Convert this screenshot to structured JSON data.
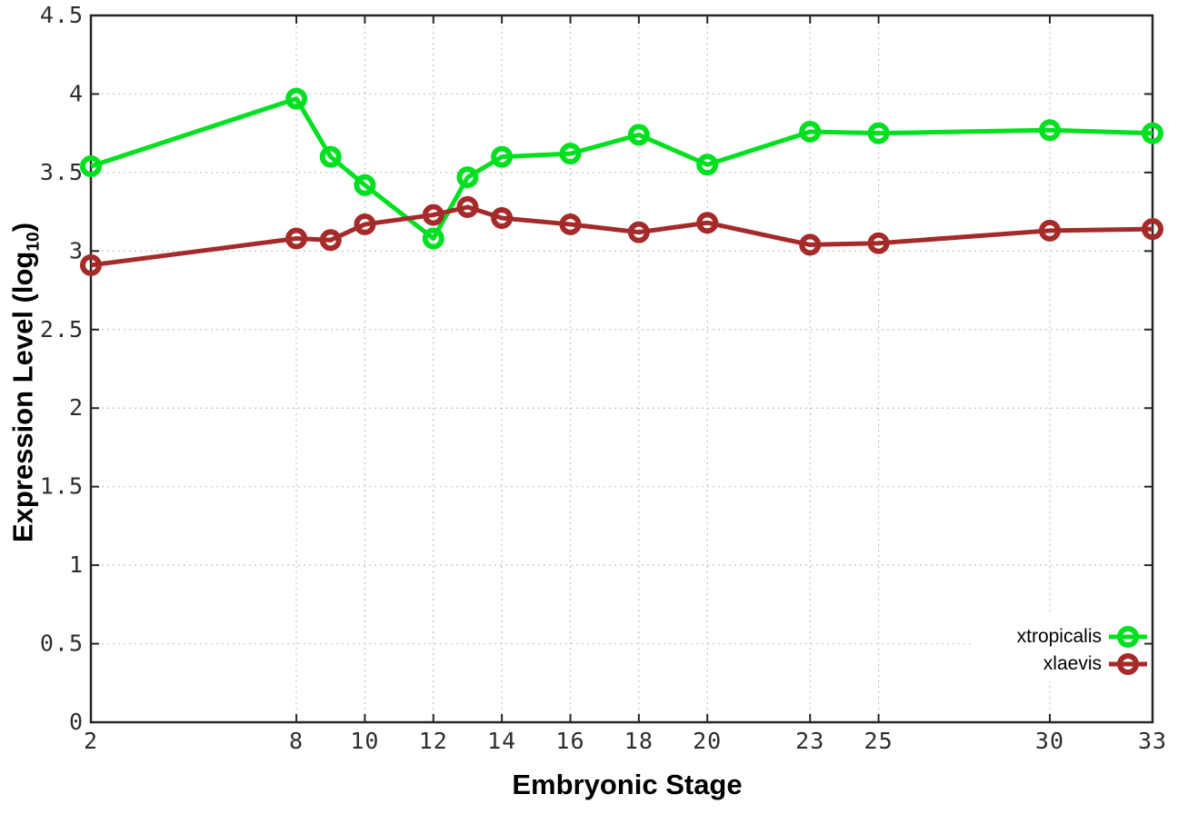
{
  "chart_data": {
    "type": "line",
    "title": "",
    "xlabel": "Embryonic Stage",
    "ylabel": "Expression Level (log10)",
    "ylabel_display": {
      "main": "Expression Level (log",
      "sub": "10",
      "end": ")"
    },
    "x": [
      2,
      8,
      9,
      10,
      12,
      13,
      14,
      16,
      18,
      20,
      23,
      25,
      30,
      33
    ],
    "series": [
      {
        "name": "xtropicalis",
        "color": "#00E020",
        "values": [
          3.54,
          3.97,
          3.6,
          3.42,
          3.08,
          3.47,
          3.6,
          3.62,
          3.74,
          3.55,
          3.76,
          3.75,
          3.77,
          3.75
        ]
      },
      {
        "name": "xlaevis",
        "color": "#A52A2A",
        "values": [
          2.91,
          3.08,
          3.07,
          3.17,
          3.23,
          3.28,
          3.21,
          3.17,
          3.12,
          3.18,
          3.04,
          3.05,
          3.13,
          3.14
        ]
      }
    ],
    "xlim": [
      2,
      33
    ],
    "ylim": [
      0,
      4.5
    ],
    "xticks": {
      "values": [
        2,
        8,
        10,
        12,
        14,
        16,
        18,
        20,
        23,
        25,
        30,
        33
      ],
      "labels": [
        "2",
        "8",
        "10",
        "12",
        "14",
        "16",
        "18",
        "20",
        "23",
        "25",
        "30",
        "33"
      ]
    },
    "yticks": {
      "values": [
        0,
        0.5,
        1,
        1.5,
        2,
        2.5,
        3,
        3.5,
        4,
        4.5
      ],
      "labels": [
        "0",
        "0.5",
        "1",
        "1.5",
        "2",
        "2.5",
        "3",
        "3.5",
        "4",
        "4.5"
      ]
    },
    "grid": true,
    "legend_position": "inside-bottom-right",
    "marker": "open-circle",
    "colors": {
      "background": "#ffffff",
      "grid": "#c3c3c3",
      "axis": "#262626",
      "tick_label": "#2e2e2e",
      "text": "#000000"
    }
  }
}
